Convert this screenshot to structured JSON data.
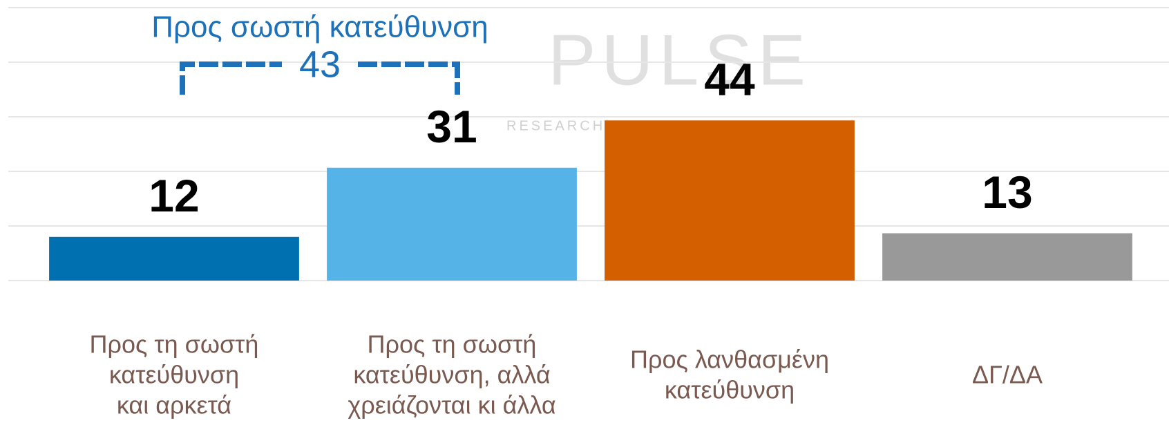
{
  "chart_data": {
    "type": "bar",
    "categories": [
      [
        "Προς τη σωστή",
        "κατεύθυνση",
        "και αρκετά"
      ],
      [
        "Προς τη σωστή",
        "κατεύθυνση, αλλά",
        "χρειάζονται κι άλλα"
      ],
      [
        "Προς λανθασμένη",
        "κατεύθυνση"
      ],
      [
        "ΔΓ/ΔΑ"
      ]
    ],
    "values": [
      12,
      31,
      44,
      13
    ],
    "colors": [
      "#0070b0",
      "#56b3e7",
      "#d35f00",
      "#999999"
    ],
    "ylim": [
      0,
      75
    ],
    "yticks": [
      0,
      15,
      30,
      45,
      60,
      75
    ],
    "grid": true,
    "bracket": {
      "label": "Προς σωστή κατεύθυνση",
      "value": 43
    },
    "watermark": {
      "title": "PULSE",
      "subtitle": "RESEARCH & CONSULTING"
    }
  }
}
